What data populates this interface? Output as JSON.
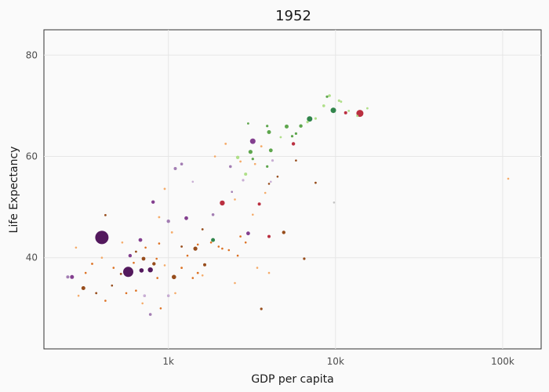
{
  "chart_data": {
    "type": "scatter",
    "title": "1952",
    "xlabel": "GDP per capita",
    "ylabel": "Life Expectancy",
    "x_scale": "log",
    "xlim": [
      180,
      170000
    ],
    "ylim": [
      22,
      85
    ],
    "x_ticks": [
      1000,
      10000,
      100000
    ],
    "x_tick_labels": [
      "1k",
      "10k",
      "100k"
    ],
    "y_ticks": [
      40,
      60,
      80
    ],
    "y_tick_labels": [
      "40",
      "60",
      "80"
    ],
    "grid": true,
    "legend": "none",
    "colors": {
      "dark_purple": "#40004b",
      "purple": "#762a83",
      "light_purple": "#9970ab",
      "pale_purple": "#c2a5cf",
      "dark_orange": "#8c3a03",
      "orange": "#d9620a",
      "light_orange": "#f4a259",
      "dark_green": "#1b7837",
      "green": "#4d9c3a",
      "light_green": "#a6db7b",
      "red": "#b2182b",
      "grey": "#bdbdbd"
    },
    "points": [
      {
        "gdp": 400,
        "life": 44.0,
        "r": 8.5,
        "color": "dark_purple"
      },
      {
        "gdp": 575,
        "life": 37.2,
        "r": 6.5,
        "color": "dark_purple"
      },
      {
        "gdp": 14000,
        "life": 68.5,
        "r": 4.5,
        "color": "red"
      },
      {
        "gdp": 3200,
        "life": 63.0,
        "r": 3.5,
        "color": "purple"
      },
      {
        "gdp": 7000,
        "life": 67.4,
        "r": 3.5,
        "color": "dark_green"
      },
      {
        "gdp": 9700,
        "life": 69.1,
        "r": 3.5,
        "color": "dark_green"
      },
      {
        "gdp": 2100,
        "life": 50.8,
        "r": 3.2,
        "color": "red"
      },
      {
        "gdp": 780,
        "life": 37.6,
        "r": 3.2,
        "color": "dark_purple"
      },
      {
        "gdp": 1080,
        "life": 36.2,
        "r": 2.8,
        "color": "dark_orange"
      },
      {
        "gdp": 690,
        "life": 37.5,
        "r": 2.8,
        "color": "dark_purple"
      },
      {
        "gdp": 265,
        "life": 36.2,
        "r": 2.5,
        "color": "purple"
      },
      {
        "gdp": 310,
        "life": 34.0,
        "r": 2.5,
        "color": "dark_orange"
      },
      {
        "gdp": 3100,
        "life": 60.9,
        "r": 2.6,
        "color": "green"
      },
      {
        "gdp": 4000,
        "life": 64.8,
        "r": 2.5,
        "color": "green"
      },
      {
        "gdp": 5100,
        "life": 65.9,
        "r": 2.5,
        "color": "green"
      },
      {
        "gdp": 6200,
        "life": 66.0,
        "r": 2.2,
        "color": "green"
      },
      {
        "gdp": 4100,
        "life": 61.2,
        "r": 2.4,
        "color": "green"
      },
      {
        "gdp": 1850,
        "life": 43.5,
        "r": 2.5,
        "color": "dark_green"
      },
      {
        "gdp": 3000,
        "life": 44.8,
        "r": 2.4,
        "color": "purple"
      },
      {
        "gdp": 2900,
        "life": 56.5,
        "r": 2.0,
        "color": "light_green"
      },
      {
        "gdp": 3500,
        "life": 50.6,
        "r": 2.0,
        "color": "red"
      },
      {
        "gdp": 5600,
        "life": 62.5,
        "r": 2.2,
        "color": "red"
      },
      {
        "gdp": 11500,
        "life": 68.6,
        "r": 2.0,
        "color": "red"
      },
      {
        "gdp": 4000,
        "life": 44.2,
        "r": 2.0,
        "color": "red"
      },
      {
        "gdp": 4900,
        "life": 45.0,
        "r": 2.2,
        "color": "dark_orange"
      },
      {
        "gdp": 1450,
        "life": 41.8,
        "r": 2.6,
        "color": "dark_orange"
      },
      {
        "gdp": 810,
        "life": 51.0,
        "r": 2.2,
        "color": "purple"
      },
      {
        "gdp": 1280,
        "life": 47.8,
        "r": 2.4,
        "color": "purple"
      },
      {
        "gdp": 1000,
        "life": 47.2,
        "r": 2.2,
        "color": "light_purple"
      },
      {
        "gdp": 680,
        "life": 43.5,
        "r": 2.4,
        "color": "purple"
      },
      {
        "gdp": 590,
        "life": 40.4,
        "r": 2.2,
        "color": "purple"
      },
      {
        "gdp": 1100,
        "life": 57.6,
        "r": 2.0,
        "color": "light_purple"
      },
      {
        "gdp": 1200,
        "life": 58.5,
        "r": 1.8,
        "color": "light_purple"
      },
      {
        "gdp": 1850,
        "life": 48.5,
        "r": 1.8,
        "color": "light_purple"
      },
      {
        "gdp": 710,
        "life": 39.8,
        "r": 2.4,
        "color": "dark_orange"
      },
      {
        "gdp": 820,
        "life": 38.8,
        "r": 2.2,
        "color": "dark_orange"
      },
      {
        "gdp": 1650,
        "life": 38.6,
        "r": 2.0,
        "color": "dark_orange"
      },
      {
        "gdp": 6500,
        "life": 39.8,
        "r": 1.6,
        "color": "dark_orange"
      },
      {
        "gdp": 780,
        "life": 28.8,
        "r": 1.8,
        "color": "light_purple"
      },
      {
        "gdp": 1000,
        "life": 32.5,
        "r": 1.8,
        "color": "pale_purple"
      },
      {
        "gdp": 720,
        "life": 32.5,
        "r": 1.8,
        "color": "pale_purple"
      },
      {
        "gdp": 250,
        "life": 36.2,
        "r": 2.0,
        "color": "light_purple"
      },
      {
        "gdp": 2350,
        "life": 58.0,
        "r": 1.8,
        "color": "light_purple"
      },
      {
        "gdp": 4200,
        "life": 59.2,
        "r": 1.6,
        "color": "pale_purple"
      },
      {
        "gdp": 2800,
        "life": 55.3,
        "r": 1.6,
        "color": "pale_purple"
      },
      {
        "gdp": 8500,
        "life": 70.0,
        "r": 1.8,
        "color": "light_green"
      },
      {
        "gdp": 9200,
        "life": 72.0,
        "r": 1.8,
        "color": "light_green"
      },
      {
        "gdp": 8900,
        "life": 71.8,
        "r": 1.6,
        "color": "green"
      },
      {
        "gdp": 10500,
        "life": 71.0,
        "r": 1.6,
        "color": "light_green"
      },
      {
        "gdp": 6800,
        "life": 66.8,
        "r": 1.6,
        "color": "light_green"
      },
      {
        "gdp": 7600,
        "life": 67.5,
        "r": 1.6,
        "color": "light_green"
      },
      {
        "gdp": 10800,
        "life": 70.8,
        "r": 1.4,
        "color": "light_green"
      },
      {
        "gdp": 12000,
        "life": 69.0,
        "r": 1.4,
        "color": "light_green"
      },
      {
        "gdp": 15500,
        "life": 69.5,
        "r": 1.4,
        "color": "light_green"
      },
      {
        "gdp": 13500,
        "life": 68.0,
        "r": 1.4,
        "color": "light_green"
      },
      {
        "gdp": 5500,
        "life": 64.0,
        "r": 1.6,
        "color": "green"
      },
      {
        "gdp": 4700,
        "life": 63.8,
        "r": 1.4,
        "color": "light_green"
      },
      {
        "gdp": 3200,
        "life": 59.5,
        "r": 1.6,
        "color": "green"
      },
      {
        "gdp": 3900,
        "life": 58.0,
        "r": 1.6,
        "color": "green"
      },
      {
        "gdp": 2600,
        "life": 59.8,
        "r": 2.2,
        "color": "light_green"
      },
      {
        "gdp": 5800,
        "life": 64.5,
        "r": 1.6,
        "color": "green"
      },
      {
        "gdp": 3900,
        "life": 66.0,
        "r": 1.6,
        "color": "green"
      },
      {
        "gdp": 3000,
        "life": 66.5,
        "r": 1.4,
        "color": "green"
      },
      {
        "gdp": 2200,
        "life": 62.5,
        "r": 1.4,
        "color": "light_orange"
      },
      {
        "gdp": 2700,
        "life": 59.0,
        "r": 1.4,
        "color": "light_orange"
      },
      {
        "gdp": 3600,
        "life": 62.0,
        "r": 1.4,
        "color": "light_orange"
      },
      {
        "gdp": 1900,
        "life": 60.0,
        "r": 1.3,
        "color": "light_orange"
      },
      {
        "gdp": 3800,
        "life": 52.8,
        "r": 1.3,
        "color": "light_orange"
      },
      {
        "gdp": 2500,
        "life": 51.5,
        "r": 1.3,
        "color": "light_orange"
      },
      {
        "gdp": 7600,
        "life": 54.8,
        "r": 1.4,
        "color": "dark_orange"
      },
      {
        "gdp": 4500,
        "life": 56.0,
        "r": 1.3,
        "color": "dark_orange"
      },
      {
        "gdp": 4000,
        "life": 54.6,
        "r": 1.3,
        "color": "dark_orange"
      },
      {
        "gdp": 5800,
        "life": 59.2,
        "r": 1.3,
        "color": "dark_orange"
      },
      {
        "gdp": 3600,
        "life": 29.9,
        "r": 1.6,
        "color": "dark_orange"
      },
      {
        "gdp": 950,
        "life": 53.6,
        "r": 1.4,
        "color": "light_orange"
      },
      {
        "gdp": 880,
        "life": 48.0,
        "r": 1.4,
        "color": "light_orange"
      },
      {
        "gdp": 1050,
        "life": 45.0,
        "r": 1.4,
        "color": "light_orange"
      },
      {
        "gdp": 420,
        "life": 48.4,
        "r": 1.4,
        "color": "dark_orange"
      },
      {
        "gdp": 530,
        "life": 43.0,
        "r": 1.3,
        "color": "light_orange"
      },
      {
        "gdp": 640,
        "life": 41.2,
        "r": 1.4,
        "color": "dark_orange"
      },
      {
        "gdp": 730,
        "life": 42.0,
        "r": 1.3,
        "color": "orange"
      },
      {
        "gdp": 880,
        "life": 42.8,
        "r": 1.3,
        "color": "orange"
      },
      {
        "gdp": 1200,
        "life": 42.2,
        "r": 1.4,
        "color": "dark_orange"
      },
      {
        "gdp": 1300,
        "life": 40.4,
        "r": 1.3,
        "color": "orange"
      },
      {
        "gdp": 1500,
        "life": 37.0,
        "r": 1.4,
        "color": "orange"
      },
      {
        "gdp": 1400,
        "life": 36.0,
        "r": 1.3,
        "color": "orange"
      },
      {
        "gdp": 1600,
        "life": 45.6,
        "r": 1.4,
        "color": "dark_orange"
      },
      {
        "gdp": 1800,
        "life": 43.0,
        "r": 1.3,
        "color": "orange"
      },
      {
        "gdp": 2000,
        "life": 42.2,
        "r": 1.3,
        "color": "orange"
      },
      {
        "gdp": 2300,
        "life": 41.5,
        "r": 1.3,
        "color": "orange"
      },
      {
        "gdp": 2600,
        "life": 40.4,
        "r": 1.3,
        "color": "orange"
      },
      {
        "gdp": 2900,
        "life": 43.0,
        "r": 1.3,
        "color": "orange"
      },
      {
        "gdp": 1200,
        "life": 38.0,
        "r": 1.4,
        "color": "orange"
      },
      {
        "gdp": 950,
        "life": 38.5,
        "r": 1.3,
        "color": "light_orange"
      },
      {
        "gdp": 860,
        "life": 36.0,
        "r": 1.3,
        "color": "orange"
      },
      {
        "gdp": 620,
        "life": 39.0,
        "r": 1.3,
        "color": "orange"
      },
      {
        "gdp": 520,
        "life": 36.8,
        "r": 1.4,
        "color": "dark_orange"
      },
      {
        "gdp": 470,
        "life": 38.0,
        "r": 1.3,
        "color": "orange"
      },
      {
        "gdp": 400,
        "life": 40.0,
        "r": 1.3,
        "color": "light_orange"
      },
      {
        "gdp": 350,
        "life": 38.8,
        "r": 1.4,
        "color": "orange"
      },
      {
        "gdp": 320,
        "life": 37.0,
        "r": 1.3,
        "color": "orange"
      },
      {
        "gdp": 280,
        "life": 42.0,
        "r": 1.3,
        "color": "light_orange"
      },
      {
        "gdp": 290,
        "life": 32.5,
        "r": 1.3,
        "color": "light_orange"
      },
      {
        "gdp": 370,
        "life": 33.0,
        "r": 1.4,
        "color": "dark_orange"
      },
      {
        "gdp": 420,
        "life": 31.5,
        "r": 1.3,
        "color": "orange"
      },
      {
        "gdp": 460,
        "life": 34.5,
        "r": 1.3,
        "color": "dark_orange"
      },
      {
        "gdp": 560,
        "life": 33.0,
        "r": 1.3,
        "color": "orange"
      },
      {
        "gdp": 640,
        "life": 33.5,
        "r": 1.3,
        "color": "orange"
      },
      {
        "gdp": 700,
        "life": 31.0,
        "r": 1.3,
        "color": "light_orange"
      },
      {
        "gdp": 900,
        "life": 30.0,
        "r": 1.3,
        "color": "orange"
      },
      {
        "gdp": 1100,
        "life": 33.0,
        "r": 1.3,
        "color": "light_orange"
      },
      {
        "gdp": 1600,
        "life": 36.5,
        "r": 1.3,
        "color": "light_orange"
      },
      {
        "gdp": 2500,
        "life": 35.0,
        "r": 1.3,
        "color": "light_orange"
      },
      {
        "gdp": 4000,
        "life": 37.0,
        "r": 1.3,
        "color": "light_orange"
      },
      {
        "gdp": 2100,
        "life": 41.8,
        "r": 1.3,
        "color": "orange"
      },
      {
        "gdp": 3400,
        "life": 38.0,
        "r": 1.3,
        "color": "light_orange"
      },
      {
        "gdp": 2700,
        "life": 44.2,
        "r": 1.3,
        "color": "orange"
      },
      {
        "gdp": 1500,
        "life": 42.6,
        "r": 1.3,
        "color": "orange"
      },
      {
        "gdp": 850,
        "life": 39.8,
        "r": 1.3,
        "color": "orange"
      },
      {
        "gdp": 9800,
        "life": 50.9,
        "r": 1.3,
        "color": "grey"
      },
      {
        "gdp": 108000,
        "life": 55.6,
        "r": 1.3,
        "color": "light_orange"
      },
      {
        "gdp": 4100,
        "life": 55.0,
        "r": 1.3,
        "color": "pale_purple"
      },
      {
        "gdp": 3300,
        "life": 58.5,
        "r": 1.3,
        "color": "light_orange"
      },
      {
        "gdp": 2400,
        "life": 53.0,
        "r": 1.3,
        "color": "light_purple"
      },
      {
        "gdp": 3200,
        "life": 48.5,
        "r": 1.3,
        "color": "light_orange"
      },
      {
        "gdp": 1400,
        "life": 55.0,
        "r": 1.3,
        "color": "pale_purple"
      }
    ]
  }
}
